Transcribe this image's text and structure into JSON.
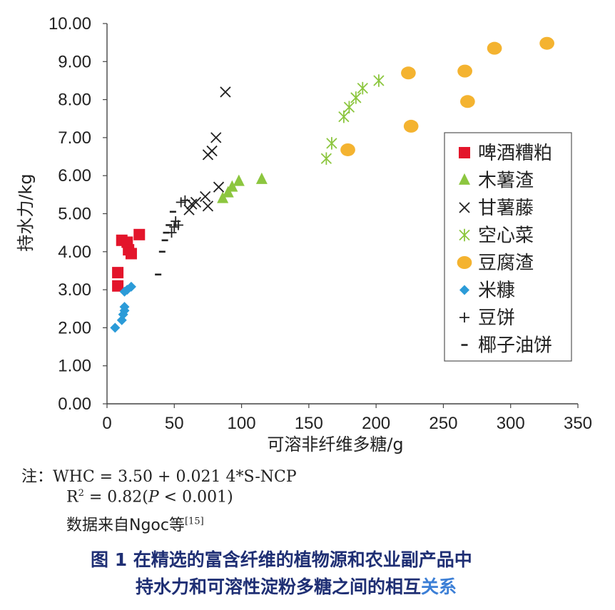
{
  "chart_data": {
    "type": "scatter",
    "xlabel": "可溶非纤维多糖/g",
    "ylabel": "持水力/kg",
    "xlim": [
      0,
      350
    ],
    "ylim": [
      0,
      10
    ],
    "x_ticks": [
      "0",
      "50",
      "100",
      "150",
      "200",
      "250",
      "300",
      "350"
    ],
    "y_ticks": [
      "0.00",
      "1.00",
      "2.00",
      "3.00",
      "4.00",
      "5.00",
      "6.00",
      "7.00",
      "8.00",
      "9.00",
      "10.00"
    ],
    "legend_position": "right",
    "series": [
      {
        "name": "啤酒糟粕",
        "marker": "square",
        "color": "#e3152b",
        "points": [
          [
            8,
            3.45
          ],
          [
            8,
            3.1
          ],
          [
            11,
            4.3
          ],
          [
            15,
            4.25
          ],
          [
            16,
            4.05
          ],
          [
            18,
            3.95
          ],
          [
            24,
            4.45
          ]
        ]
      },
      {
        "name": "木薯渣",
        "marker": "triangle",
        "color": "#8cc63f",
        "points": [
          [
            86,
            5.4
          ],
          [
            90,
            5.55
          ],
          [
            93,
            5.7
          ],
          [
            98,
            5.85
          ],
          [
            115,
            5.9
          ]
        ]
      },
      {
        "name": "甘薯藤",
        "marker": "x",
        "color": "#222222",
        "points": [
          [
            61,
            5.1
          ],
          [
            63,
            5.25
          ],
          [
            66,
            5.3
          ],
          [
            73,
            5.45
          ],
          [
            75,
            5.2
          ],
          [
            75,
            6.55
          ],
          [
            78,
            6.65
          ],
          [
            81,
            7.0
          ],
          [
            83,
            5.7
          ],
          [
            88,
            8.2
          ]
        ]
      },
      {
        "name": "空心菜",
        "marker": "asterisk",
        "color": "#8cc63f",
        "points": [
          [
            163,
            6.45
          ],
          [
            167,
            6.85
          ],
          [
            176,
            7.55
          ],
          [
            180,
            7.8
          ],
          [
            185,
            8.05
          ],
          [
            190,
            8.3
          ],
          [
            202,
            8.5
          ]
        ]
      },
      {
        "name": "豆腐渣",
        "marker": "circle",
        "color": "#f4b330",
        "points": [
          [
            179,
            6.68
          ],
          [
            224,
            8.7
          ],
          [
            226,
            7.3
          ],
          [
            266,
            8.75
          ],
          [
            268,
            7.95
          ],
          [
            288,
            9.35
          ],
          [
            327,
            9.48
          ]
        ]
      },
      {
        "name": "米糠",
        "marker": "diamond",
        "color": "#2b9bd8",
        "points": [
          [
            6,
            2.0
          ],
          [
            11,
            2.2
          ],
          [
            12,
            2.35
          ],
          [
            13,
            2.45
          ],
          [
            13,
            2.55
          ],
          [
            13,
            2.95
          ],
          [
            15,
            3.0
          ],
          [
            18,
            3.08
          ]
        ]
      },
      {
        "name": "豆饼",
        "marker": "plus",
        "color": "#222222",
        "points": [
          [
            48,
            4.5
          ],
          [
            50,
            4.65
          ],
          [
            51,
            4.8
          ],
          [
            53,
            4.7
          ],
          [
            55,
            5.3
          ],
          [
            58,
            5.35
          ]
        ]
      },
      {
        "name": "椰子油饼",
        "marker": "dash",
        "color": "#222222",
        "points": [
          [
            38,
            3.4
          ],
          [
            41,
            4.0
          ],
          [
            43,
            4.3
          ],
          [
            44,
            4.5
          ],
          [
            46,
            4.7
          ],
          [
            49,
            5.05
          ]
        ]
      }
    ]
  },
  "notes": {
    "prefix": "注：",
    "equation": "WHC = 3.50 + 0.021 4*S-NCP",
    "r2_base": "R",
    "r2_sup": "2",
    "r2_mid": " = 0.82(",
    "r2_p": "P",
    "r2_end": " < 0.001)",
    "source": "数据来自Ngoc等",
    "source_ref": "[15]"
  },
  "caption": {
    "line1": "图 1  在精选的富含纤维的植物源和农业副产品中",
    "line2_main": "持水力和可溶性淀粉多糖之间的相互",
    "line2_tail": "关系"
  }
}
